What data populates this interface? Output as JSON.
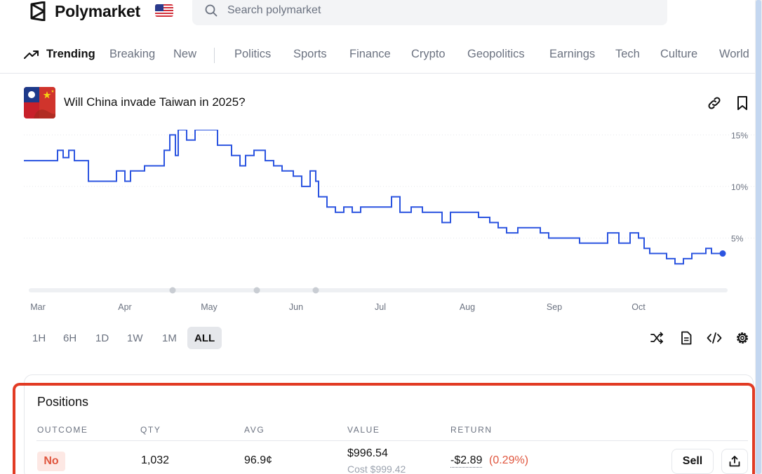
{
  "header": {
    "brand": "Polymarket",
    "region_flag_icon": "us-flag-icon",
    "search_placeholder": "Search polymarket"
  },
  "nav": {
    "items": [
      {
        "label": "Trending",
        "icon": "trending-up-icon",
        "active": true
      },
      {
        "label": "Breaking"
      },
      {
        "label": "New"
      },
      {
        "label": "Politics"
      },
      {
        "label": "Sports"
      },
      {
        "label": "Finance"
      },
      {
        "label": "Crypto"
      },
      {
        "label": "Geopolitics"
      },
      {
        "label": "Earnings"
      },
      {
        "label": "Tech"
      },
      {
        "label": "Culture"
      },
      {
        "label": "World"
      }
    ]
  },
  "market": {
    "title": "Will China invade Taiwan in 2025?",
    "image_icon": "taiwan-china-flags-icon",
    "actions": [
      "link-icon",
      "bookmark-icon"
    ]
  },
  "chart_data": {
    "type": "line",
    "xlabel": "",
    "ylabel": "",
    "x_ticks": [
      "Mar",
      "Apr",
      "May",
      "Jun",
      "Jul",
      "Aug",
      "Sep",
      "Oct"
    ],
    "y_ticks": [
      "15%",
      "10%",
      "5%"
    ],
    "ylim": [
      0,
      15.5
    ],
    "grid": "horizontal",
    "color": "#2b54e0",
    "series": [
      {
        "points": [
          [
            "Feb 24",
            12.5
          ],
          [
            "Mar 5",
            12.5
          ],
          [
            "Mar 8",
            13.5
          ],
          [
            "Mar 10",
            12.8
          ],
          [
            "Mar 12",
            13.5
          ],
          [
            "Mar 14",
            12.5
          ],
          [
            "Mar 16",
            12.5
          ],
          [
            "Mar 19",
            10.5
          ],
          [
            "Mar 28",
            10.5
          ],
          [
            "Mar 29",
            11.5
          ],
          [
            "Apr 1",
            10.5
          ],
          [
            "Apr 3",
            11.5
          ],
          [
            "Apr 6",
            11.5
          ],
          [
            "Apr 8",
            12.0
          ],
          [
            "Apr 13",
            12.0
          ],
          [
            "Apr 15",
            13.5
          ],
          [
            "Apr 17",
            15.0
          ],
          [
            "Apr 19",
            13.0
          ],
          [
            "Apr 20",
            15.5
          ],
          [
            "Apr 23",
            14.5
          ],
          [
            "Apr 26",
            15.5
          ],
          [
            "May 1",
            15.5
          ],
          [
            "May 4",
            14.0
          ],
          [
            "May 8",
            14.0
          ],
          [
            "May 9",
            13.0
          ],
          [
            "May 12",
            12.0
          ],
          [
            "May 14",
            13.0
          ],
          [
            "May 17",
            13.5
          ],
          [
            "May 21",
            12.5
          ],
          [
            "May 24",
            12.0
          ],
          [
            "May 27",
            11.5
          ],
          [
            "May 31",
            11.0
          ],
          [
            "Jun 3",
            10.0
          ],
          [
            "Jun 6",
            11.5
          ],
          [
            "Jun 8",
            10.5
          ],
          [
            "Jun 9",
            9.0
          ],
          [
            "Jun 12",
            8.0
          ],
          [
            "Jun 15",
            7.5
          ],
          [
            "Jun 18",
            8.0
          ],
          [
            "Jun 21",
            7.5
          ],
          [
            "Jun 24",
            8.0
          ],
          [
            "Jun 28",
            8.0
          ],
          [
            "Jul 1",
            8.0
          ],
          [
            "Jul 5",
            9.0
          ],
          [
            "Jul 8",
            7.5
          ],
          [
            "Jul 12",
            8.0
          ],
          [
            "Jul 16",
            7.5
          ],
          [
            "Jul 20",
            7.5
          ],
          [
            "Jul 23",
            6.5
          ],
          [
            "Jul 26",
            7.5
          ],
          [
            "Aug 1",
            7.5
          ],
          [
            "Aug 5",
            7.0
          ],
          [
            "Aug 9",
            6.5
          ],
          [
            "Aug 12",
            6.0
          ],
          [
            "Aug 15",
            5.5
          ],
          [
            "Aug 19",
            6.0
          ],
          [
            "Aug 24",
            6.0
          ],
          [
            "Aug 27",
            5.5
          ],
          [
            "Aug 30",
            5.0
          ],
          [
            "Sep 4",
            5.0
          ],
          [
            "Sep 10",
            4.5
          ],
          [
            "Sep 15",
            4.5
          ],
          [
            "Sep 20",
            5.5
          ],
          [
            "Sep 24",
            4.5
          ],
          [
            "Sep 28",
            5.5
          ],
          [
            "Oct 1",
            5.0
          ],
          [
            "Oct 3",
            4.0
          ],
          [
            "Oct 5",
            3.5
          ],
          [
            "Oct 8",
            3.5
          ],
          [
            "Oct 11",
            3.0
          ],
          [
            "Oct 14",
            2.5
          ],
          [
            "Oct 17",
            3.0
          ],
          [
            "Oct 20",
            3.5
          ],
          [
            "Oct 23",
            3.5
          ],
          [
            "Oct 25",
            4.0
          ],
          [
            "Oct 27",
            3.5
          ],
          [
            "Oct 31",
            3.5
          ]
        ]
      }
    ]
  },
  "ranges": {
    "items": [
      {
        "label": "1H"
      },
      {
        "label": "6H"
      },
      {
        "label": "1D"
      },
      {
        "label": "1W"
      },
      {
        "label": "1M"
      },
      {
        "label": "ALL",
        "active": true
      }
    ]
  },
  "chart_tools": [
    "shuffle-icon",
    "document-icon",
    "code-icon",
    "gear-icon"
  ],
  "positions": {
    "title": "Positions",
    "columns": {
      "outcome": "OUTCOME",
      "qty": "QTY",
      "avg": "AVG",
      "value": "VALUE",
      "return": "RETURN"
    },
    "rows": [
      {
        "outcome": "No",
        "qty": "1,032",
        "avg": "96.9¢",
        "value": "$996.54",
        "cost": "Cost $999.42",
        "return": "-$2.89",
        "return_pct": "(0.29%)",
        "sell_label": "Sell"
      }
    ]
  },
  "colors": {
    "accent": "#2b54e0",
    "highlight_outline": "#e23b24",
    "negative": "#e0563e"
  }
}
